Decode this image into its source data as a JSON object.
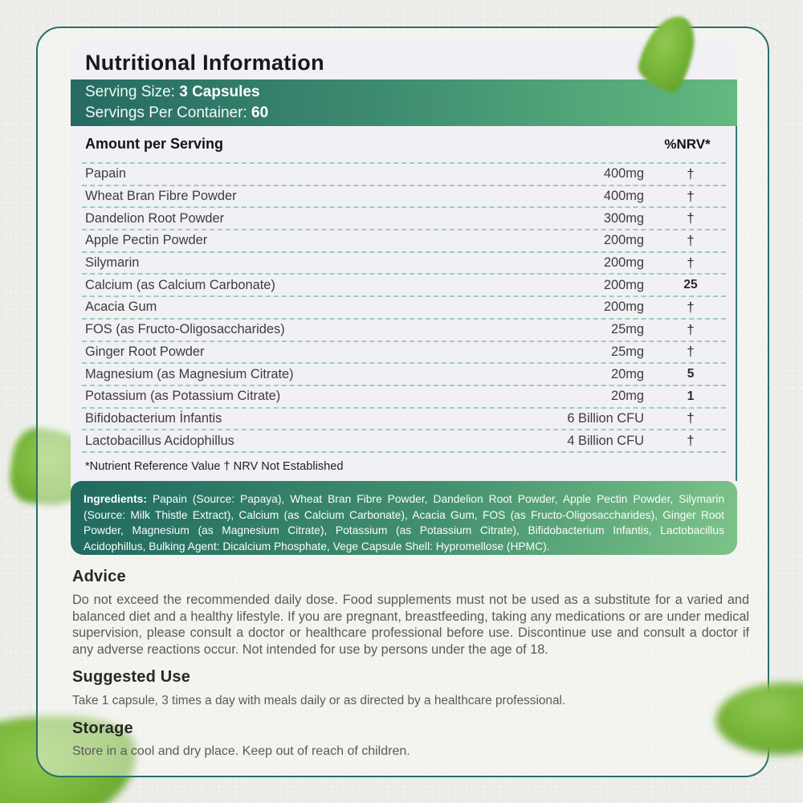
{
  "label": {
    "title": "Nutritional Information",
    "serving_size_label": "Serving Size: ",
    "serving_size_value": "3 Capsules",
    "servings_per_container_label": "Servings Per Container: ",
    "servings_per_container_value": "60",
    "table": {
      "header_left": "Amount per Serving",
      "header_right": "%NRV*",
      "rows": [
        {
          "name": "Papain",
          "amount": "400mg",
          "nrv": "†",
          "strong": false
        },
        {
          "name": "Wheat Bran Fibre Powder",
          "amount": "400mg",
          "nrv": "†",
          "strong": false
        },
        {
          "name": "Dandelion Root Powder",
          "amount": "300mg",
          "nrv": "†",
          "strong": false
        },
        {
          "name": "Apple Pectin Powder",
          "amount": "200mg",
          "nrv": "†",
          "strong": false
        },
        {
          "name": "Silymarin",
          "amount": "200mg",
          "nrv": "†",
          "strong": false
        },
        {
          "name": "Calcium (as Calcium Carbonate)",
          "amount": "200mg",
          "nrv": "25",
          "strong": true
        },
        {
          "name": "Acacia Gum",
          "amount": "200mg",
          "nrv": "†",
          "strong": false
        },
        {
          "name": "FOS (as Fructo-Oligosaccharides)",
          "amount": "25mg",
          "nrv": "†",
          "strong": false
        },
        {
          "name": "Ginger Root Powder",
          "amount": "25mg",
          "nrv": "†",
          "strong": false
        },
        {
          "name": "Magnesium (as Magnesium Citrate)",
          "amount": "20mg",
          "nrv": "5",
          "strong": true
        },
        {
          "name": "Potassium (as Potassium Citrate)",
          "amount": "20mg",
          "nrv": "1",
          "strong": true
        },
        {
          "name": "Bifidobacterium İnfantis",
          "amount": "6 Billion CFU",
          "nrv": "†",
          "strong": false
        },
        {
          "name": "Lactobacillus Acidophillus",
          "amount": "4 Billion CFU",
          "nrv": "†",
          "strong": false
        }
      ],
      "footnote": "*Nutrient Reference Value † NRV Not Established"
    },
    "ingredients": {
      "label": "Ingredients:",
      "text": " Papain (Source: Papaya), Wheat Bran Fibre Powder, Dandelion Root Powder, Apple Pectin Powder, Silymarin (Source: Milk Thistle Extract), Calcium (as Calcium Carbonate), Acacia Gum, FOS (as Fructo-Oligosaccharides), Ginger Root Powder, Magnesium (as Magnesium Citrate), Potassium (as Potassium Citrate), Bifidobacterium Infantis, Lactobacillus Acidophillus, Bulking Agent: Dicalcium Phosphate, Vege Capsule Shell: Hypromellose (HPMC)."
    }
  },
  "sections": [
    {
      "heading": "Advice",
      "text": "Do not exceed the recommended daily dose. Food supplements must not be used as a substitute for a varied and balanced diet and a healthy lifestyle. If you are pregnant, breastfeeding, taking any medications or are under medical supervision, please consult a doctor or healthcare professional before use. Discontinue use and consult a doctor if any adverse reactions occur. Not intended for use by persons under the age of 18."
    },
    {
      "heading": "Suggested Use",
      "text": "Take 1 capsule, 3 times a day with meals daily or as directed by a healthcare professional."
    },
    {
      "heading": "Storage",
      "text": "Store in a cool and dry place. Keep out of reach of children."
    }
  ],
  "colors": {
    "card_border": "#2b6f68",
    "band_gradient_dark": "#266a62",
    "band_gradient_light": "#62ba7f",
    "dash_green": "#9ad0b2",
    "leaf_green": "#74b236",
    "panel_bg": "#f1f0f5"
  }
}
